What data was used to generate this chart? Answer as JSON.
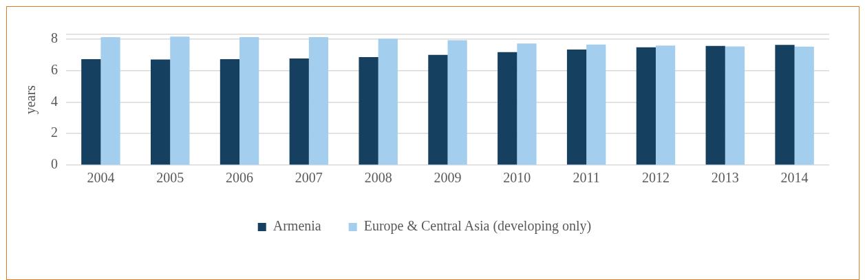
{
  "chart_data": {
    "type": "bar",
    "ylabel": "years",
    "categories": [
      "2004",
      "2005",
      "2006",
      "2007",
      "2008",
      "2009",
      "2010",
      "2011",
      "2012",
      "2013",
      "2014"
    ],
    "series": [
      {
        "name": "Armenia",
        "color": "#15405f",
        "values": [
          6.73,
          6.71,
          6.73,
          6.77,
          6.86,
          7.0,
          7.17,
          7.34,
          7.48,
          7.57,
          7.63
        ]
      },
      {
        "name": "Europe & Central Asia (developing only)",
        "color": "#a3ceed",
        "values": [
          8.12,
          8.16,
          8.12,
          8.13,
          8.03,
          7.93,
          7.72,
          7.66,
          7.59,
          7.54,
          7.52
        ]
      }
    ],
    "ylim": [
      0,
      8.3
    ],
    "yticks": [
      0,
      2,
      4,
      6,
      8,
      {
        "value": 8.3,
        "label": null
      }
    ],
    "grid": "y",
    "legend": "bottom"
  }
}
